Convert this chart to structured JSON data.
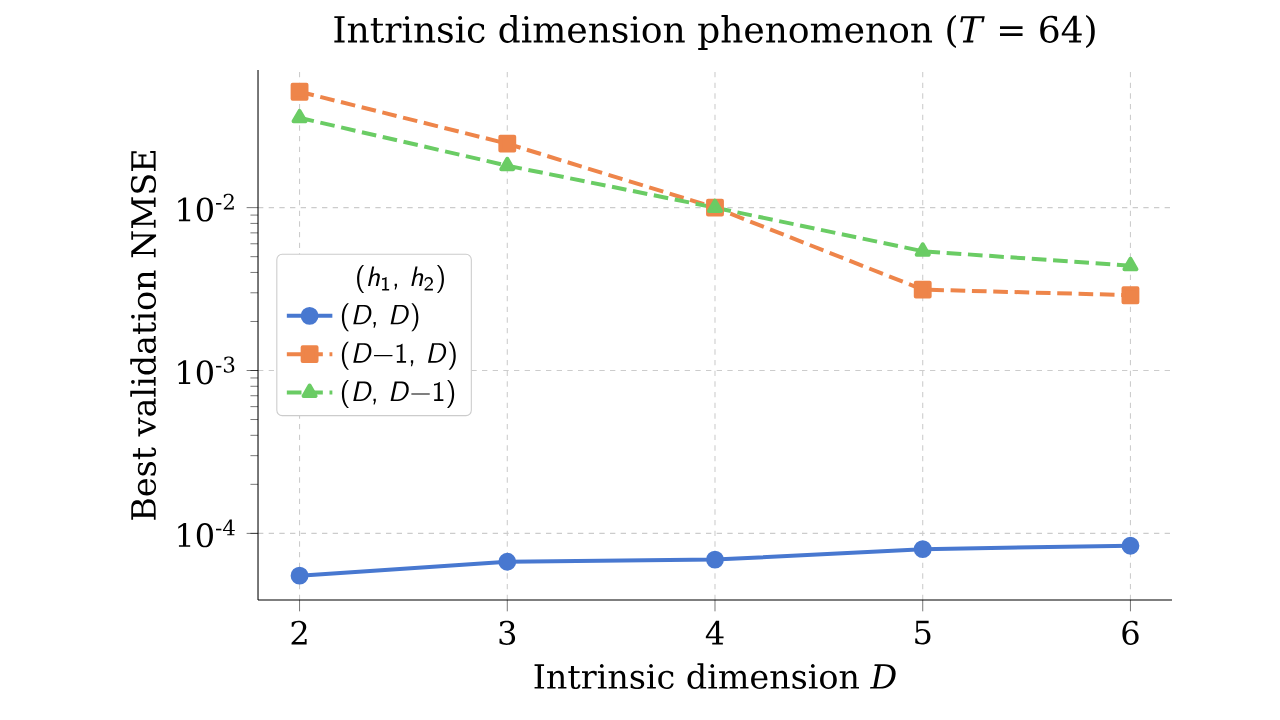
{
  "chart_data": {
    "type": "line",
    "title": "Intrinsic dimension phenomenon (*T* = 64)",
    "xlabel": "Intrinsic dimension *D*",
    "ylabel": "Best validation NMSE",
    "legend_title": "(*h*$_{1}$, *h*$_{2}$)",
    "x": [
      2,
      3,
      4,
      5,
      6
    ],
    "series": [
      {
        "name": "(*D*, *D*)",
        "color": "#4878d0",
        "marker": "circle",
        "line_style": "solid",
        "values": [
          5.5e-05,
          6.7e-05,
          6.9e-05,
          8e-05,
          8.4e-05
        ]
      },
      {
        "name": "(*D*−1, *D*)",
        "color": "#ee854a",
        "marker": "square",
        "line_style": "dashed",
        "values": [
          0.0515,
          0.0247,
          0.01,
          0.00314,
          0.0029
        ]
      },
      {
        "name": "(*D*, *D*−1)",
        "color": "#6acc64",
        "marker": "triangle",
        "line_style": "dashed",
        "values": [
          0.0356,
          0.0181,
          0.01,
          0.0054,
          0.0044
        ]
      }
    ],
    "xlim": [
      1.8,
      6.2
    ],
    "ylim": [
      3.9e-05,
      0.07
    ],
    "xticks": [
      2,
      3,
      4,
      5,
      6
    ],
    "yticks": [
      {
        "value": 0.0001,
        "label": "10$^{-4}$"
      },
      {
        "value": 0.001,
        "label": "10$^{-3}$"
      },
      {
        "value": 0.01,
        "label": "10$^{-2}$"
      }
    ],
    "log": "y",
    "grid": true,
    "legend": "left"
  }
}
